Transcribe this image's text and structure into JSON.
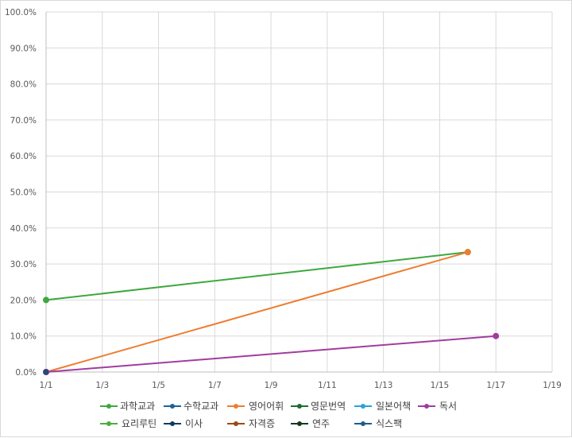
{
  "chart_data": {
    "type": "line",
    "title": "",
    "xlabel": "",
    "ylabel": "",
    "x_ticks": [
      "1/1",
      "1/3",
      "1/5",
      "1/7",
      "1/9",
      "1/11",
      "1/13",
      "1/15",
      "1/17",
      "1/19"
    ],
    "y_ticks": [
      "0.0%",
      "10.0%",
      "20.0%",
      "30.0%",
      "40.0%",
      "50.0%",
      "60.0%",
      "70.0%",
      "80.0%",
      "90.0%",
      "100.0%"
    ],
    "xlim": [
      "1/1",
      "1/19"
    ],
    "ylim": [
      0,
      1.0
    ],
    "grid": true,
    "legend_position": "bottom",
    "series": [
      {
        "name": "과학교과",
        "color": "#3ea83e",
        "points": [
          [
            "1/1",
            0.2
          ],
          [
            "1/16",
            0.333
          ]
        ]
      },
      {
        "name": "수학교과",
        "color": "#1f6296",
        "points": [
          [
            "1/1",
            0.0
          ]
        ]
      },
      {
        "name": "영어어휘",
        "color": "#ed7d31",
        "points": [
          [
            "1/1",
            0.0
          ],
          [
            "1/16",
            0.333
          ]
        ]
      },
      {
        "name": "영문번역",
        "color": "#1e6b30",
        "points": []
      },
      {
        "name": "일본어책",
        "color": "#2aa3d6",
        "points": []
      },
      {
        "name": "독서",
        "color": "#a03da0",
        "points": [
          [
            "1/1",
            0.0
          ],
          [
            "1/17",
            0.1
          ]
        ]
      },
      {
        "name": "요리루틴",
        "color": "#4cae3c",
        "points": []
      },
      {
        "name": "이사",
        "color": "#0e3b5c",
        "points": []
      },
      {
        "name": "자격증",
        "color": "#9c4a14",
        "points": []
      },
      {
        "name": "연주",
        "color": "#15391c",
        "points": []
      },
      {
        "name": "식스팩",
        "color": "#1b5e8a",
        "points": []
      }
    ]
  }
}
